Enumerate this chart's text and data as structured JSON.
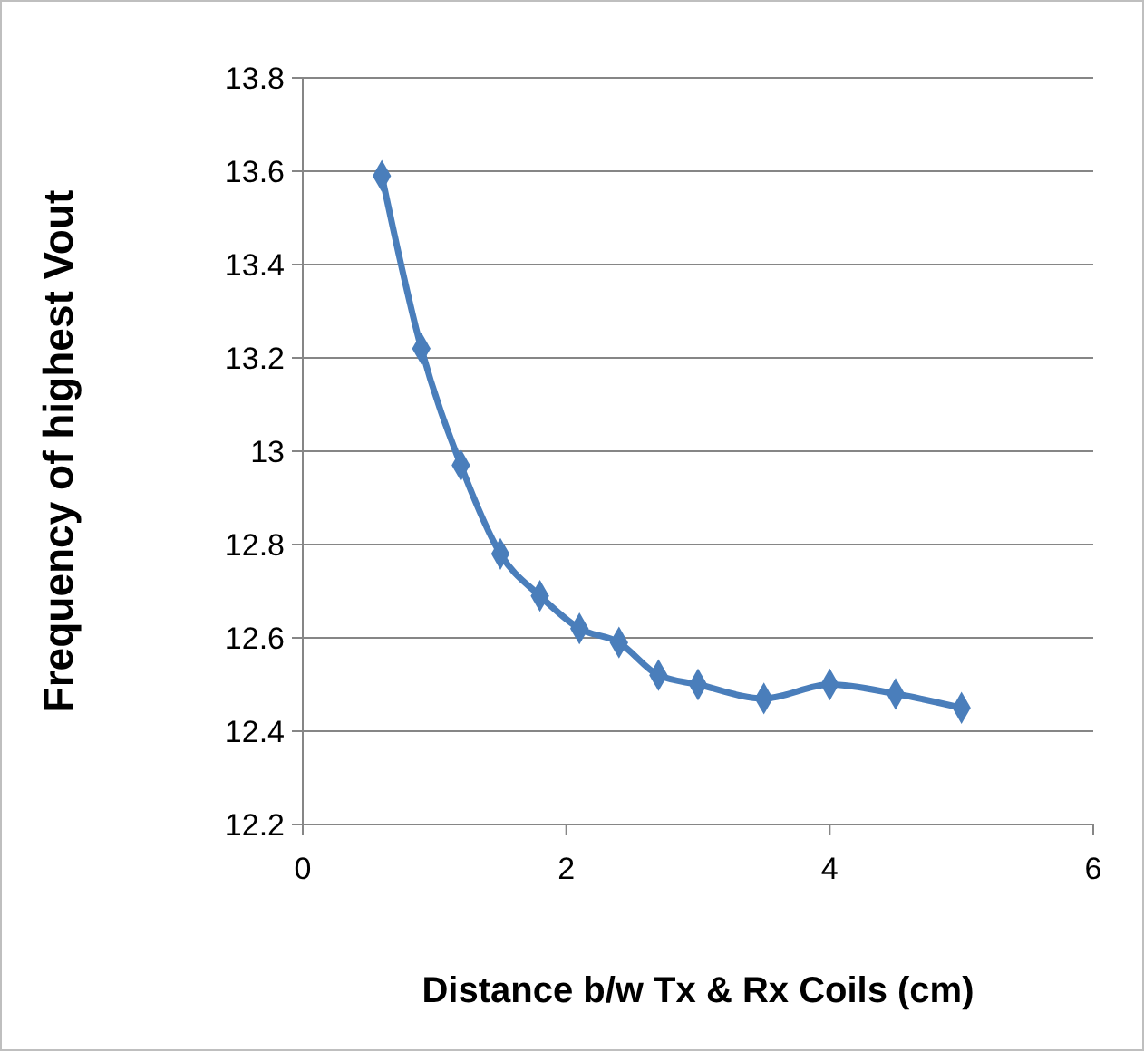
{
  "chart_data": {
    "type": "line",
    "xlabel": "Distance b/w Tx & Rx Coils (cm)",
    "ylabel": "Frequency of highest Vout",
    "x": [
      0.6,
      0.9,
      1.2,
      1.5,
      1.8,
      2.1,
      2.4,
      2.7,
      3.0,
      3.5,
      4.0,
      4.5,
      5.0
    ],
    "series": [
      {
        "color": "#4a7ebb",
        "values": [
          13.59,
          13.22,
          12.97,
          12.78,
          12.69,
          12.62,
          12.59,
          12.52,
          12.5,
          12.47,
          12.5,
          12.48,
          12.45
        ]
      }
    ],
    "xlim": [
      0,
      6
    ],
    "xticks": [
      0,
      2,
      4,
      6
    ],
    "ylim": [
      12.2,
      13.8
    ],
    "yticks": [
      12.2,
      12.4,
      12.6,
      12.8,
      13,
      13.2,
      13.4,
      13.6,
      13.8
    ],
    "grid": "y",
    "marker": "diamond",
    "line_style": "solid"
  }
}
